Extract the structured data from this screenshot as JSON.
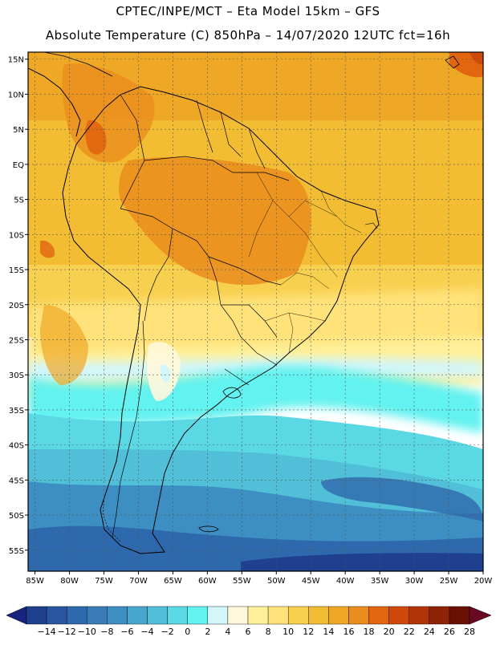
{
  "header": {
    "line1": "CPTEC/INPE/MCT –  Eta Model 15km – GFS",
    "line2": "Absolute Temperature (C) 850hPa – 14/07/2020 12UTC fct=16h"
  },
  "map": {
    "lat_labels": [
      "15N",
      "10N",
      "5N",
      "EQ",
      "5S",
      "10S",
      "15S",
      "20S",
      "25S",
      "30S",
      "35S",
      "40S",
      "45S",
      "50S",
      "55S"
    ],
    "lon_labels": [
      "85W",
      "80W",
      "75W",
      "70W",
      "65W",
      "60W",
      "55W",
      "50W",
      "45W",
      "40W",
      "35W",
      "30W",
      "25W",
      "20W"
    ],
    "lat_range": [
      -58,
      16
    ],
    "lon_range": [
      -86,
      -20
    ]
  },
  "colorbar": {
    "labels": [
      "-14",
      "-12",
      "-10",
      "-8",
      "-6",
      "-4",
      "-2",
      "0",
      "2",
      "4",
      "6",
      "8",
      "10",
      "12",
      "14",
      "16",
      "18",
      "20",
      "22",
      "24",
      "26",
      "28"
    ],
    "colors": [
      "#1f3f8f",
      "#2956a0",
      "#2e69ad",
      "#3a7cb8",
      "#3d8ec2",
      "#48a6cd",
      "#52bfd8",
      "#5ad8e4",
      "#62f2f0",
      "#d2f6fa",
      "#fff8dc",
      "#fff09a",
      "#ffe27a",
      "#f8d04f",
      "#f2bd33",
      "#efa826",
      "#ea8d1d",
      "#e26510",
      "#cf4a0a",
      "#b23507",
      "#8e2306",
      "#6a1104"
    ],
    "low_arrow_color": "#1a237e",
    "high_arrow_color": "#6a0a22"
  }
}
